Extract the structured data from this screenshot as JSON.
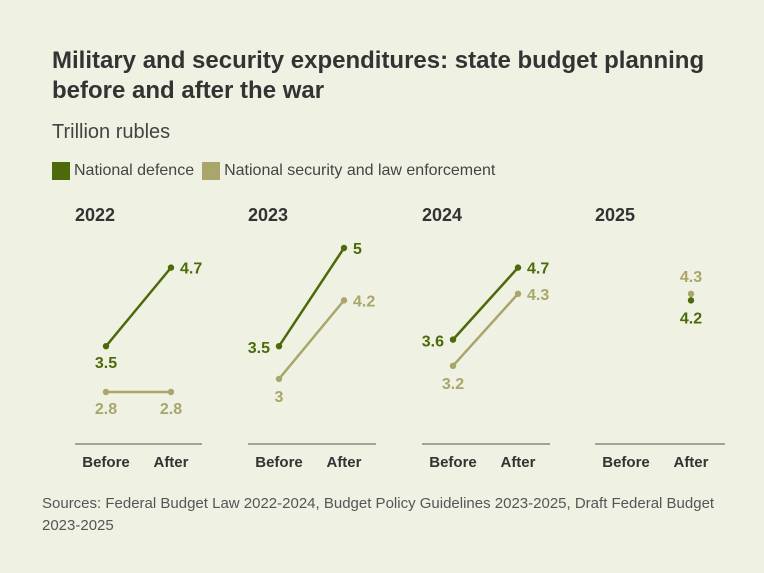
{
  "title": "Military and security expenditures: state budget planning before and after the war",
  "subtitle": "Trillion rubles",
  "colors": {
    "defence": "#4d6a0b",
    "security": "#a9a56b",
    "axis": "#555555",
    "background": "#eff1e3"
  },
  "source": "Sources: Federal Budget Law 2022-2024, Budget Policy Guidelines 2023-2025, Draft Federal Budget 2023-2025",
  "chart_data": {
    "type": "line",
    "layout": "small-multiples",
    "categories": [
      "Before",
      "After"
    ],
    "series": [
      {
        "name": "National defence",
        "color": "#4d6a0b"
      },
      {
        "name": "National security and law enforcement",
        "color": "#a9a56b"
      }
    ],
    "panels": [
      {
        "title": "2022",
        "values": [
          {
            "series": 0,
            "before": 3.5,
            "after": 4.7,
            "before_label": "3.5",
            "after_label": "4.7"
          },
          {
            "series": 1,
            "before": 2.8,
            "after": 2.8,
            "before_label": "2.8",
            "after_label": "2.8"
          }
        ]
      },
      {
        "title": "2023",
        "values": [
          {
            "series": 0,
            "before": 3.5,
            "after": 5.0,
            "before_label": "3.5",
            "after_label": "5"
          },
          {
            "series": 1,
            "before": 3.0,
            "after": 4.2,
            "before_label": "3",
            "after_label": "4.2"
          }
        ]
      },
      {
        "title": "2024",
        "values": [
          {
            "series": 0,
            "before": 3.6,
            "after": 4.7,
            "before_label": "3.6",
            "after_label": "4.7"
          },
          {
            "series": 1,
            "before": 3.2,
            "after": 4.3,
            "before_label": "3.2",
            "after_label": "4.3"
          }
        ]
      },
      {
        "title": "2025",
        "values": [
          {
            "series": 0,
            "before": null,
            "after": 4.2,
            "before_label": "",
            "after_label": "4.2"
          },
          {
            "series": 1,
            "before": null,
            "after": 4.3,
            "before_label": "",
            "after_label": "4.3"
          }
        ]
      }
    ],
    "ylim": [
      2.5,
      5.1
    ]
  }
}
